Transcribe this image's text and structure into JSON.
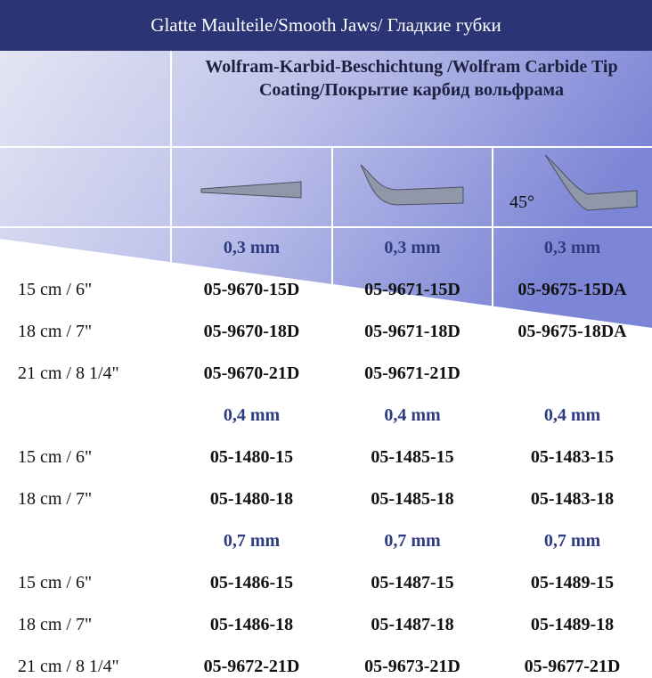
{
  "header": {
    "title": "Glatte Maulteile/Smooth Jaws/ Гладкие губки"
  },
  "table": {
    "coating_header": "Wolfram-Karbid-Beschichtung /Wolfram Carbide Tip Coating/Покрытие карбид вольфрама",
    "angle_label": "45°",
    "rows": [
      [
        null,
        "0,3 mm",
        "0,3 mm",
        "0,3 mm"
      ],
      [
        "15 cm / 6\"",
        "05-9670-15D",
        "05-9671-15D",
        "05-9675-15DA"
      ],
      [
        "18 cm / 7\"",
        "05-9670-18D",
        "05-9671-18D",
        "05-9675-18DA"
      ],
      [
        "21 cm / 8 1/4\"",
        "05-9670-21D",
        "05-9671-21D",
        null
      ],
      [
        null,
        "0,4 mm",
        "0,4 mm",
        "0,4 mm"
      ],
      [
        "15 cm / 6\"",
        "05-1480-15",
        "05-1485-15",
        "05-1483-15"
      ],
      [
        "18 cm / 7\"",
        "05-1480-18",
        "05-1485-18",
        "05-1483-18"
      ],
      [
        null,
        "0,7 mm",
        "0,7 mm",
        "0,7 mm"
      ],
      [
        "15 cm / 6\"",
        "05-1486-15",
        "05-1487-15",
        "05-1489-15"
      ],
      [
        "18 cm / 7\"",
        "05-1486-18",
        "05-1487-18",
        "05-1489-18"
      ],
      [
        "21 cm / 8 1/4\"",
        "05-9672-21D",
        "05-9673-21D",
        "05-9677-21D"
      ]
    ]
  }
}
